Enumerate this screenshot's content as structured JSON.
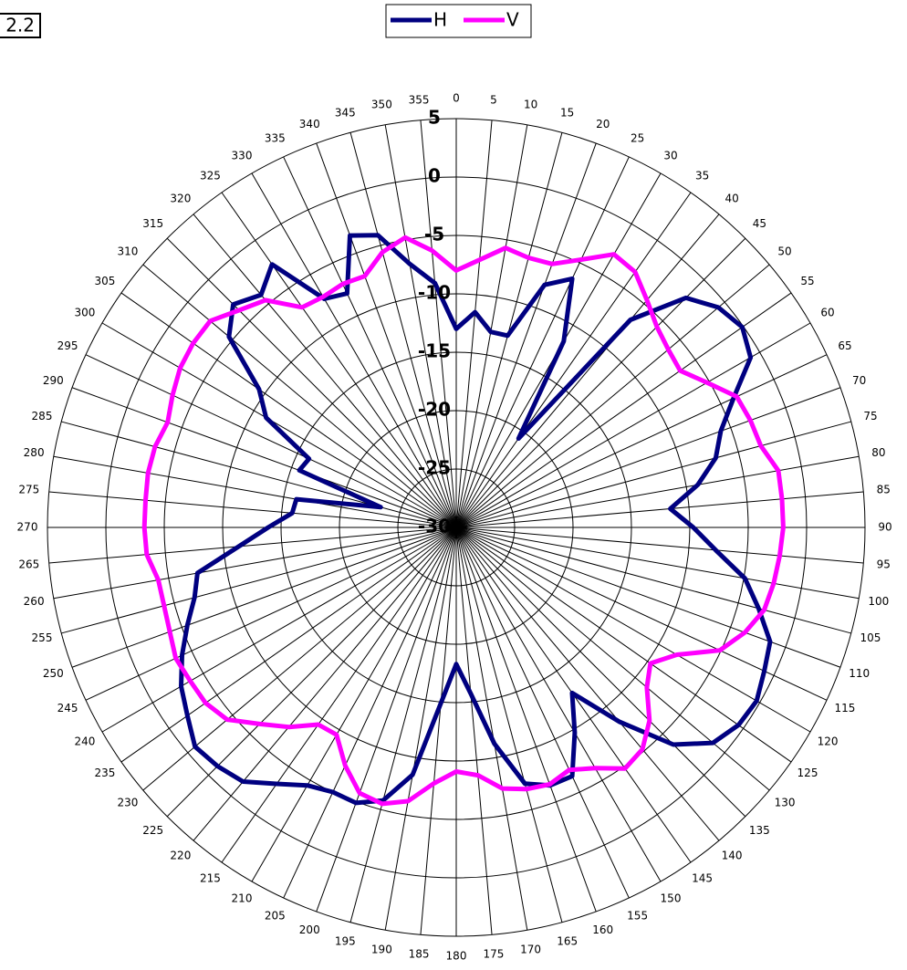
{
  "chart_data": {
    "type": "radar",
    "annotations": [
      "2.2"
    ],
    "categories": [
      0,
      5,
      10,
      15,
      20,
      25,
      30,
      35,
      40,
      45,
      50,
      55,
      60,
      65,
      70,
      75,
      80,
      85,
      90,
      95,
      100,
      105,
      110,
      115,
      120,
      125,
      130,
      135,
      140,
      145,
      150,
      155,
      160,
      165,
      170,
      175,
      180,
      185,
      190,
      195,
      200,
      205,
      210,
      215,
      220,
      225,
      230,
      235,
      240,
      245,
      250,
      255,
      260,
      265,
      270,
      275,
      280,
      285,
      290,
      295,
      300,
      305,
      310,
      315,
      320,
      325,
      330,
      335,
      340,
      345,
      350,
      355
    ],
    "ylim": [
      -30,
      5
    ],
    "yticks": [
      -30,
      -25,
      -20,
      -15,
      -10,
      -5,
      0,
      5
    ],
    "grid": true,
    "legend": "top",
    "series": [
      {
        "name": "H",
        "color": "#000080",
        "values": [
          -13,
          -11.5,
          -13,
          -13,
          -7.9,
          -6.5,
          -11.6,
          -20.7,
          -6.8,
          -2.2,
          -0.7,
          -0.1,
          -0.9,
          -3.8,
          -5.9,
          -7,
          -9,
          -11.6,
          -9.7,
          -7.7,
          -4.9,
          -3.2,
          -1.4,
          -0.9,
          -0.3,
          -0.5,
          -1.3,
          -3.7,
          -8.3,
          -12.7,
          -9.7,
          -6.5,
          -6.5,
          -7.3,
          -11.2,
          -15.7,
          -18.3,
          -14.9,
          -8.5,
          -5.8,
          -4.9,
          -5,
          -4.5,
          -3.2,
          -1.6,
          -1.1,
          -0.8,
          -1.9,
          -2.8,
          -4.1,
          -5.5,
          -6.8,
          -7.5,
          -11.3,
          -13.9,
          -15.9,
          -16.1,
          -23.3,
          -15.7,
          -16.1,
          -11.2,
          -9.4,
          -4.6,
          -3,
          -4,
          -2.5,
          -7.4,
          -7.9,
          -3.4,
          -4.1,
          -7.1,
          -9
        ]
      },
      {
        "name": "V",
        "color": "#ff00ff",
        "values": [
          -8,
          -7,
          -5.7,
          -6.1,
          -6,
          -4.7,
          -3,
          -3.3,
          -4.6,
          -5.7,
          -6.3,
          -6.6,
          -5.2,
          -3.5,
          -3.2,
          -3,
          -2,
          -2,
          -2,
          -2.2,
          -2.4,
          -2.7,
          -3.7,
          -5.1,
          -8.2,
          -9.7,
          -8.7,
          -6.6,
          -5.2,
          -4.8,
          -6.2,
          -7.1,
          -6.6,
          -6.8,
          -7.3,
          -8.7,
          -9.1,
          -8,
          -6.2,
          -5.5,
          -5.8,
          -7.5,
          -9.5,
          -9.4,
          -7.7,
          -6.2,
          -4.4,
          -3.8,
          -3.7,
          -3.5,
          -3.9,
          -4.1,
          -4.1,
          -3.4,
          -3.3,
          -3.3,
          -3.2,
          -3.3,
          -3.7,
          -3.2,
          -2.7,
          -2.5,
          -2.5,
          -3.7,
          -4.6,
          -7,
          -7.2,
          -7,
          -7.1,
          -5.6,
          -4.8,
          -6.2
        ]
      }
    ]
  }
}
